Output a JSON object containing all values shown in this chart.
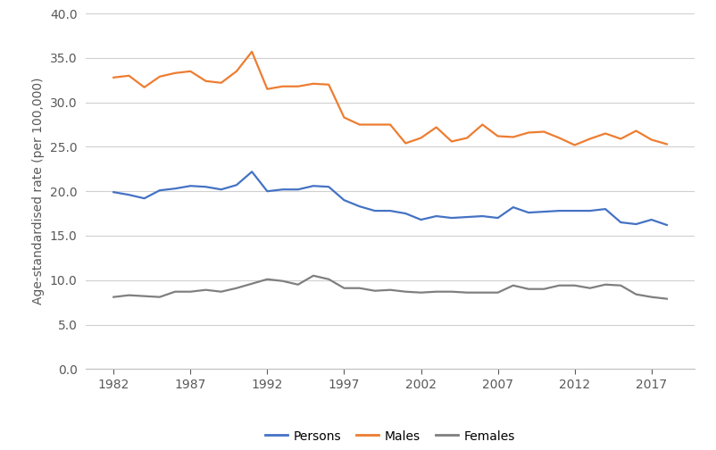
{
  "years": [
    1982,
    1983,
    1984,
    1985,
    1986,
    1987,
    1988,
    1989,
    1990,
    1991,
    1992,
    1993,
    1994,
    1995,
    1996,
    1997,
    1998,
    1999,
    2000,
    2001,
    2002,
    2003,
    2004,
    2005,
    2006,
    2007,
    2008,
    2009,
    2010,
    2011,
    2012,
    2013,
    2014,
    2015,
    2016,
    2017,
    2018
  ],
  "persons": [
    19.9,
    19.6,
    19.2,
    20.1,
    20.3,
    20.6,
    20.5,
    20.2,
    20.7,
    22.2,
    20.0,
    20.2,
    20.2,
    20.6,
    20.5,
    19.0,
    18.3,
    17.8,
    17.8,
    17.5,
    16.8,
    17.2,
    17.0,
    17.1,
    17.2,
    17.0,
    18.2,
    17.6,
    17.7,
    17.8,
    17.8,
    17.8,
    18.0,
    16.5,
    16.3,
    16.8,
    16.2
  ],
  "males": [
    32.8,
    33.0,
    31.7,
    32.9,
    33.3,
    33.5,
    32.4,
    32.2,
    33.5,
    35.7,
    31.5,
    31.8,
    31.8,
    32.1,
    32.0,
    28.3,
    27.5,
    27.5,
    27.5,
    25.4,
    26.0,
    27.2,
    25.6,
    26.0,
    27.5,
    26.2,
    26.1,
    26.6,
    26.7,
    26.0,
    25.2,
    25.9,
    26.5,
    25.9,
    26.8,
    25.8,
    25.3
  ],
  "females": [
    8.1,
    8.3,
    8.2,
    8.1,
    8.7,
    8.7,
    8.9,
    8.7,
    9.1,
    9.6,
    10.1,
    9.9,
    9.5,
    10.5,
    10.1,
    9.1,
    9.1,
    8.8,
    8.9,
    8.7,
    8.6,
    8.7,
    8.7,
    8.6,
    8.6,
    8.6,
    9.4,
    9.0,
    9.0,
    9.4,
    9.4,
    9.1,
    9.5,
    9.4,
    8.4,
    8.1,
    7.9
  ],
  "persons_color": "#4472C4",
  "males_color": "#ED7D31",
  "females_color": "#7F7F7F",
  "ylabel": "Age-standardised rate (per 100,000)",
  "ylim": [
    0,
    40
  ],
  "yticks": [
    0.0,
    5.0,
    10.0,
    15.0,
    20.0,
    25.0,
    30.0,
    35.0,
    40.0
  ],
  "xticks": [
    1982,
    1987,
    1992,
    1997,
    2002,
    2007,
    2012,
    2017
  ],
  "legend_labels": [
    "Persons",
    "Males",
    "Females"
  ],
  "linewidth": 1.6,
  "background_color": "#ffffff",
  "grid_color": "#d0d0d0",
  "tick_color": "#595959",
  "ylabel_fontsize": 10,
  "tick_fontsize": 10,
  "legend_fontsize": 10
}
